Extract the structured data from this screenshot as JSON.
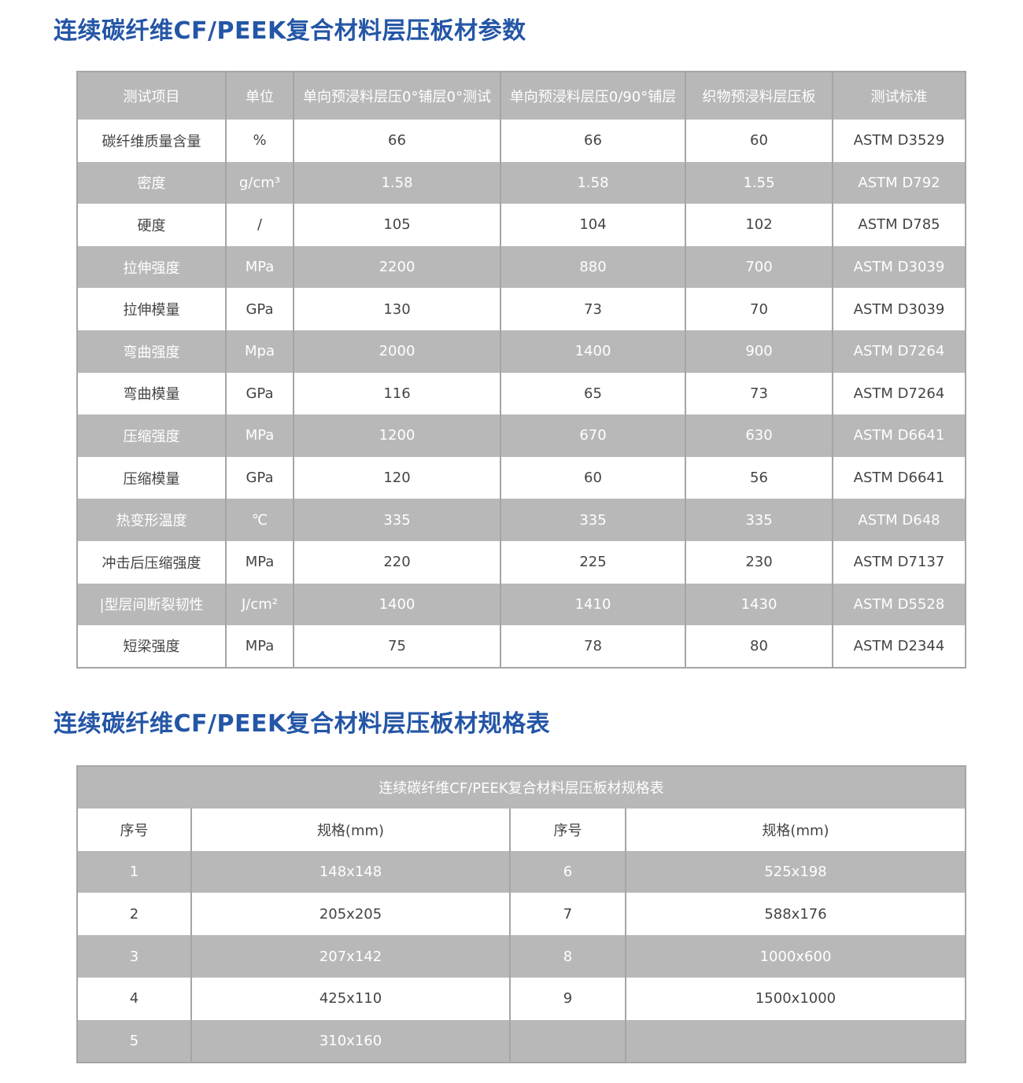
{
  "params": {
    "title": "连续碳纤维CF/PEEK复合材料层压板材参数",
    "headers": [
      "测试项目",
      "单位",
      "单向预浸料层压0°铺层0°测试",
      "单向预浸料层压0/90°铺层",
      "织物预浸料层压板",
      "测试标准"
    ],
    "rows": [
      [
        "碳纤维质量含量",
        "%",
        "66",
        "66",
        "60",
        "ASTM D3529"
      ],
      [
        "密度",
        "g/cm³",
        "1.58",
        "1.58",
        "1.55",
        "ASTM D792"
      ],
      [
        "硬度",
        "/",
        "105",
        "104",
        "102",
        "ASTM D785"
      ],
      [
        "拉伸强度",
        "MPa",
        "2200",
        "880",
        "700",
        "ASTM D3039"
      ],
      [
        "拉伸模量",
        "GPa",
        "130",
        "73",
        "70",
        "ASTM D3039"
      ],
      [
        "弯曲强度",
        "Mpa",
        "2000",
        "1400",
        "900",
        "ASTM D7264"
      ],
      [
        "弯曲模量",
        "GPa",
        "116",
        "65",
        "73",
        "ASTM D7264"
      ],
      [
        "压缩强度",
        "MPa",
        "1200",
        "670",
        "630",
        "ASTM D6641"
      ],
      [
        "压缩模量",
        "GPa",
        "120",
        "60",
        "56",
        "ASTM D6641"
      ],
      [
        "热变形温度",
        "℃",
        "335",
        "335",
        "335",
        "ASTM D648"
      ],
      [
        "冲击后压缩强度",
        "MPa",
        "220",
        "225",
        "230",
        "ASTM D7137"
      ],
      [
        "|型层间断裂韧性",
        "J/cm²",
        "1400",
        "1410",
        "1430",
        "ASTM D5528"
      ],
      [
        "短梁强度",
        "MPa",
        "75",
        "78",
        "80",
        "ASTM D2344"
      ]
    ]
  },
  "specs": {
    "title": "连续碳纤维CF/PEEK复合材料层压板材规格表",
    "table_caption": "连续碳纤维CF/PEEK复合材料层压板材规格表",
    "headers": [
      "序号",
      "规格(mm)",
      "序号",
      "规格(mm)"
    ],
    "rows": [
      [
        "1",
        "148x148",
        "6",
        "525x198"
      ],
      [
        "2",
        "205x205",
        "7",
        "588x176"
      ],
      [
        "3",
        "207x142",
        "8",
        "1000x600"
      ],
      [
        "4",
        "425x110",
        "9",
        "1500x1000"
      ],
      [
        "5",
        "310x160",
        "",
        ""
      ]
    ]
  },
  "colors": {
    "title": "#2456a6",
    "stripe": "#b9b8b8",
    "border": "#a5a5a5"
  }
}
